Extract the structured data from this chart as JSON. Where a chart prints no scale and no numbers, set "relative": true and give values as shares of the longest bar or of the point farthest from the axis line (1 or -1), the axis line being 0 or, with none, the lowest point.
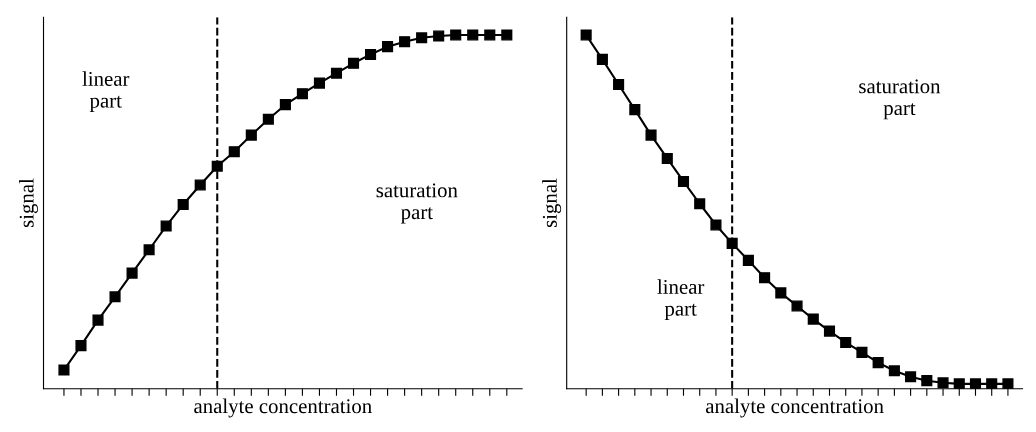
{
  "chart_data": [
    {
      "type": "line",
      "relative": true,
      "xlabel": "analyte concentration",
      "ylabel": "signal",
      "categories": [
        null,
        null,
        null,
        null,
        null,
        null,
        null,
        null,
        null,
        null,
        null,
        null,
        null,
        null,
        null,
        null,
        null,
        null,
        null,
        null,
        null,
        null,
        null,
        null,
        null,
        null,
        null
      ],
      "tick_labels": false,
      "marker": "square",
      "line_style": "solid",
      "series": [
        {
          "color": "#000000",
          "values": [
            0.053,
            0.122,
            0.194,
            0.26,
            0.327,
            0.393,
            0.46,
            0.521,
            0.576,
            0.629,
            0.67,
            0.717,
            0.762,
            0.803,
            0.834,
            0.864,
            0.892,
            0.92,
            0.945,
            0.967,
            0.981,
            0.992,
            0.997,
            1,
            1,
            1,
            1
          ]
        }
      ],
      "annotations": [
        "linear\npart",
        "saturation\npart"
      ]
    },
    {
      "type": "line",
      "relative": true,
      "xlabel": "analyte concentration",
      "ylabel": "signal",
      "categories": [
        null,
        null,
        null,
        null,
        null,
        null,
        null,
        null,
        null,
        null,
        null,
        null,
        null,
        null,
        null,
        null,
        null,
        null,
        null,
        null,
        null,
        null,
        null,
        null,
        null,
        null,
        null
      ],
      "tick_labels": false,
      "marker": "square",
      "line_style": "solid",
      "series": [
        {
          "color": "#000000",
          "values": [
            1,
            0.931,
            0.86,
            0.789,
            0.717,
            0.651,
            0.586,
            0.523,
            0.463,
            0.411,
            0.363,
            0.314,
            0.271,
            0.234,
            0.197,
            0.163,
            0.131,
            0.103,
            0.074,
            0.051,
            0.034,
            0.023,
            0.017,
            0.014,
            0.014,
            0.014,
            0.014
          ]
        }
      ],
      "annotations": [
        "saturation\npart",
        "linear\npart"
      ]
    }
  ]
}
